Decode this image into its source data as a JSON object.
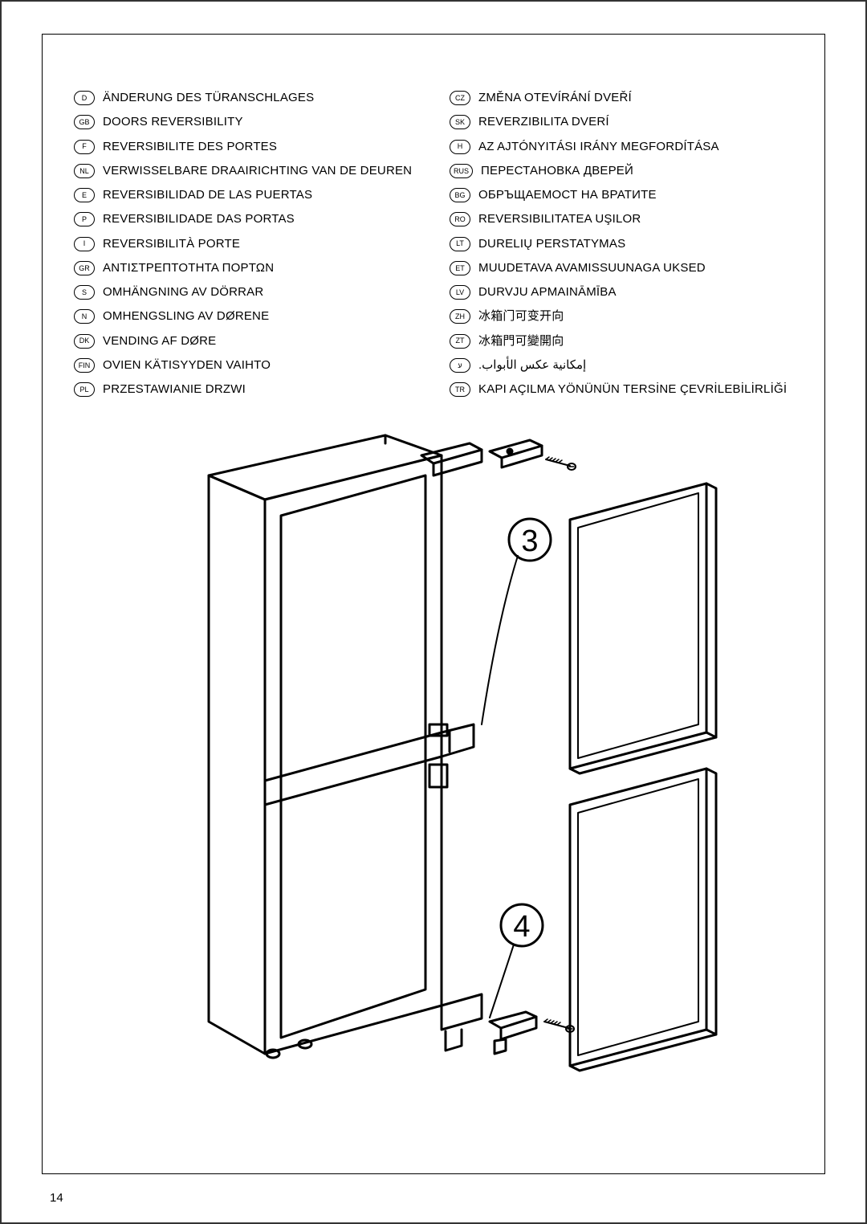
{
  "page_number": "14",
  "left_column": [
    {
      "code": "D",
      "text": "ÄNDERUNG DES TÜRANSCHLAGES"
    },
    {
      "code": "GB",
      "text": "DOORS REVERSIBILITY"
    },
    {
      "code": "F",
      "text": "REVERSIBILITE DES PORTES"
    },
    {
      "code": "NL",
      "text": "VERWISSELBARE DRAAIRICHTING VAN DE DEUREN"
    },
    {
      "code": "E",
      "text": "REVERSIBILIDAD DE LAS PUERTAS"
    },
    {
      "code": "P",
      "text": "REVERSIBILIDADE DAS PORTAS"
    },
    {
      "code": "I",
      "text": "REVERSIBILITÀ PORTE"
    },
    {
      "code": "GR",
      "text": "ΑΝΤΙΣΤΡΕΠΤΟΤΗΤΑ ΠΟΡΤΩΝ"
    },
    {
      "code": "S",
      "text": "OMHÄNGNING AV DÖRRAR"
    },
    {
      "code": "N",
      "text": "OMHENGSLING AV DØRENE"
    },
    {
      "code": "DK",
      "text": "VENDING AF DØRE"
    },
    {
      "code": "FIN",
      "text": "OVIEN KÄTISYYDEN VAIHTO"
    },
    {
      "code": "PL",
      "text": "PRZESTAWIANIE DRZWI"
    }
  ],
  "right_column": [
    {
      "code": "CZ",
      "text": "ZMĚNA OTEVÍRÁNÍ DVEŘÍ"
    },
    {
      "code": "SK",
      "text": "REVERZIBILITA DVERÍ"
    },
    {
      "code": "H",
      "text": "AZ AJTÓNYITÁSI IRÁNY MEGFORDÍTÁSA"
    },
    {
      "code": "RUS",
      "text": "ПЕРЕСТАНОВКА ДВЕРЕЙ"
    },
    {
      "code": "BG",
      "text": "ОБРЪЩАЕМОСТ НА ВРАТИТЕ"
    },
    {
      "code": "RO",
      "text": "REVERSIBILITATEA UŞILOR"
    },
    {
      "code": "LT",
      "text": "DURELIŲ PERSTATYMAS"
    },
    {
      "code": "ET",
      "text": "MUUDETAVA AVAMISSUUNAGA UKSED"
    },
    {
      "code": "LV",
      "text": "DURVJU APMAINĀMĪBA"
    },
    {
      "code": "ZH",
      "text": "冰箱门可变开向"
    },
    {
      "code": "ZT",
      "text": "冰箱門可變開向"
    },
    {
      "code": "ע",
      "text": "إمكانية عكس الأبواب.",
      "rtl": true
    },
    {
      "code": "TR",
      "text": "KAPI AÇILMA YÖNÜNÜN TERSİNE ÇEVRİLEBİLİRLİĞİ"
    }
  ],
  "diagram": {
    "callout_labels": [
      "3",
      "4"
    ],
    "stroke": "#000000",
    "stroke_width": 2.5,
    "background": "#ffffff"
  }
}
